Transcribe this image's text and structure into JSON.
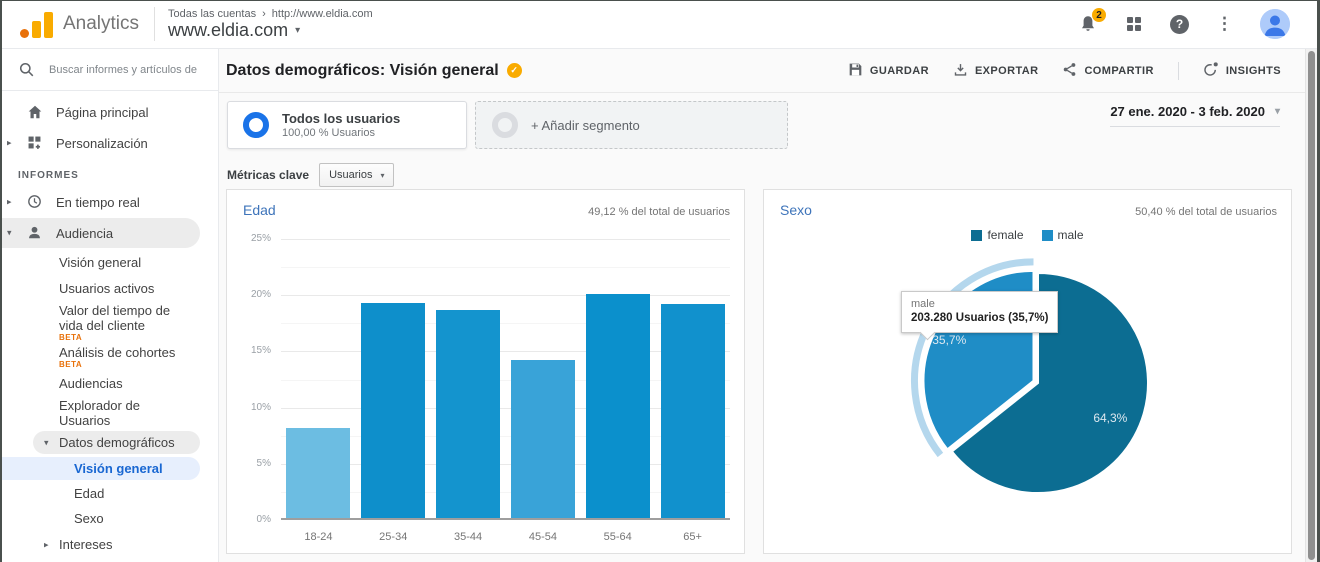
{
  "icons": {
    "caret_down": "▾",
    "caret_right": "▸",
    "more_vertical": "⋮",
    "help": "?"
  },
  "colors": {
    "brand_orange": "#f9ab00",
    "brand_orange_dark": "#e8710a",
    "widget_title_blue": "#3e74ba",
    "selected_nav_blue": "#1967d2",
    "segment_ring_blue": "#1a73e8",
    "badge_gold": "#f9ab00"
  },
  "app_bar": {
    "product": "Analytics",
    "breadcrumb": {
      "account": "Todas las cuentas",
      "separator": "›",
      "property_url": "http://www.eldia.com"
    },
    "property_selector": "www.eldia.com",
    "notifications_count": "2"
  },
  "sidebar": {
    "search_placeholder": "Buscar informes y artículos de",
    "items": [
      {
        "label": "Página principal",
        "icon": "home-icon",
        "level": 0
      },
      {
        "label": "Personalización",
        "icon": "customization-icon",
        "arrow": "right",
        "level": 0
      },
      {
        "type": "section",
        "label": "INFORMES"
      },
      {
        "label": "En tiempo real",
        "icon": "clock-icon",
        "arrow": "right",
        "level": 0
      },
      {
        "label": "Audiencia",
        "icon": "person-icon",
        "arrow": "down",
        "level": 0,
        "state": "expanded"
      },
      {
        "label": "Visión general",
        "level": 1
      },
      {
        "label": "Usuarios activos",
        "level": 1
      },
      {
        "label": "Valor del tiempo de vida del cliente",
        "beta": "BETA",
        "level": 1
      },
      {
        "label": "Análisis de cohortes",
        "beta": "BETA",
        "level": 1
      },
      {
        "label": "Audiencias",
        "level": 1
      },
      {
        "label": "Explorador de Usuarios",
        "level": 1
      },
      {
        "label": "Datos demográficos",
        "arrow": "down",
        "level": 1,
        "state": "expanded"
      },
      {
        "label": "Visión general",
        "level": 2,
        "state": "selected"
      },
      {
        "label": "Edad",
        "level": 2
      },
      {
        "label": "Sexo",
        "level": 2
      },
      {
        "label": "Intereses",
        "arrow": "right",
        "level": 1
      }
    ]
  },
  "report_header": {
    "title": "Datos demográficos: Visión general",
    "actions": [
      {
        "label": "GUARDAR",
        "icon": "save"
      },
      {
        "label": "EXPORTAR",
        "icon": "export"
      },
      {
        "label": "COMPARTIR",
        "icon": "share"
      },
      {
        "label": "INSIGHTS",
        "icon": "insights",
        "divider_before": true
      }
    ]
  },
  "segments": {
    "all_users": {
      "title": "Todos los usuarios",
      "subtitle": "100,00 % Usuarios"
    },
    "add_segment": "+ Añadir segmento"
  },
  "date_range": "27 ene. 2020 - 3 feb. 2020",
  "metrics": {
    "label": "Métricas clave",
    "selector": "Usuarios"
  },
  "chart_data": [
    {
      "type": "bar",
      "title": "Edad",
      "subtitle": "49,12 % del total de usuarios",
      "categories": [
        "18-24",
        "25-34",
        "35-44",
        "45-54",
        "55-64",
        "65+"
      ],
      "values": [
        8.1,
        19.3,
        18.6,
        14.2,
        20.1,
        19.2
      ],
      "unit": "%",
      "ylim": [
        0,
        25
      ],
      "ytick_step": 5,
      "grid": true,
      "bar_colors": [
        "#6cbde2",
        "#0e8fcb",
        "#1494ce",
        "#39a3d8",
        "#0b90cc",
        "#1191cd"
      ]
    },
    {
      "type": "pie",
      "title": "Sexo",
      "subtitle": "50,40 % del total de usuarios",
      "labels": [
        "female",
        "male"
      ],
      "values": [
        64.3,
        35.7
      ],
      "slice_labels": [
        "64,3%",
        "35,7%"
      ],
      "colors": [
        "#0c6d92",
        "#1f8dc6"
      ],
      "label_radii": [
        0.73,
        0.85
      ],
      "legend_position": "top",
      "hovered_slice": "male",
      "halo_color": "#b4d7ed",
      "tooltip": {
        "label": "male",
        "value": "203.280 Usuarios (35,7%)"
      }
    }
  ]
}
